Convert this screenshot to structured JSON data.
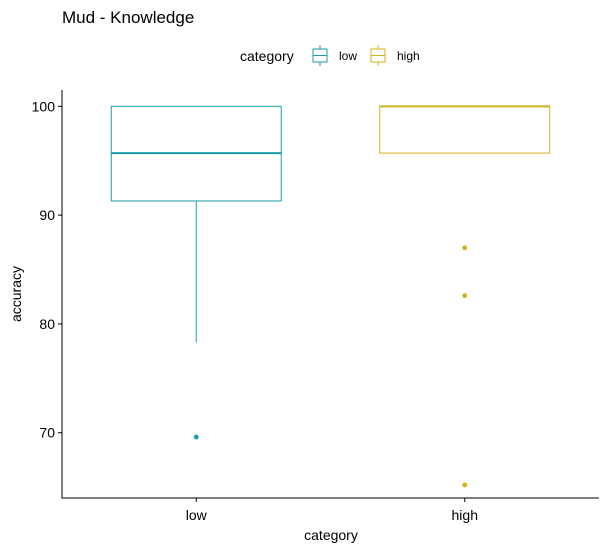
{
  "chart_data": {
    "type": "boxplot",
    "title": "Mud - Knowledge",
    "xlabel": "category",
    "ylabel": "accuracy",
    "ylim": [
      64,
      101.5
    ],
    "yticks": [
      70,
      80,
      90,
      100
    ],
    "grid": false,
    "legend": {
      "title": "category",
      "placement": "top",
      "entries": [
        "low",
        "high"
      ]
    },
    "categories": [
      "low",
      "high"
    ],
    "series": [
      {
        "name": "low",
        "color": "#1b9ea8",
        "q1": 91.3,
        "median": 95.7,
        "q3": 100,
        "whisker_low": 78.3,
        "whisker_high": 100,
        "outliers": [
          69.6
        ]
      },
      {
        "name": "high",
        "color": "#d4b21a",
        "q1": 95.7,
        "median": 100,
        "q3": 100,
        "whisker_low": 95.7,
        "whisker_high": 100,
        "outliers": [
          87.0,
          82.6,
          65.2
        ]
      }
    ]
  }
}
